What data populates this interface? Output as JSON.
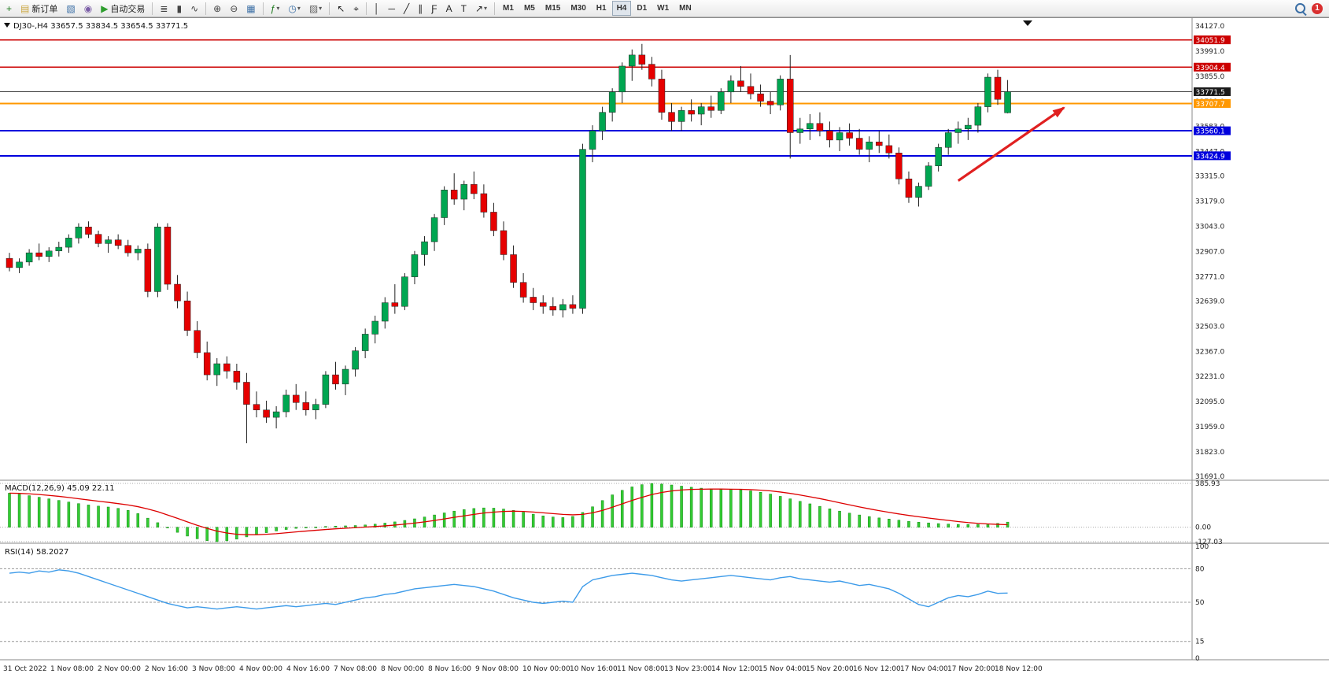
{
  "toolbar": {
    "items": [
      {
        "name": "new-chart-button",
        "glyph": "+",
        "glyph_color": "#1d7a1d"
      },
      {
        "name": "new-order-button",
        "glyph": "▤",
        "glyph_color": "#caa53d",
        "label": "新订单"
      },
      {
        "name": "profiles-button",
        "glyph": "▧",
        "glyph_color": "#3a6ea5"
      },
      {
        "name": "market-watch-button",
        "glyph": "◉",
        "glyph_color": "#7b5ea7"
      },
      {
        "name": "autotrading-button",
        "glyph": "▶",
        "glyph_color": "#2e9e2e",
        "label": "自动交易"
      },
      {
        "type": "sep"
      },
      {
        "name": "bar-chart-button",
        "glyph": "≣",
        "glyph_color": "#444"
      },
      {
        "name": "candlestick-chart-button",
        "glyph": "▮",
        "glyph_color": "#444"
      },
      {
        "name": "line-chart-button",
        "glyph": "∿",
        "glyph_color": "#444"
      },
      {
        "type": "sep"
      },
      {
        "name": "zoom-in-button",
        "glyph": "⊕",
        "glyph_color": "#444"
      },
      {
        "name": "zoom-out-button",
        "glyph": "⊖",
        "glyph_color": "#444"
      },
      {
        "name": "tile-windows-button",
        "glyph": "▦",
        "glyph_color": "#3a6ea5"
      },
      {
        "type": "sep"
      },
      {
        "name": "indicators-button",
        "glyph": "ƒ",
        "glyph_color": "#1d7a1d",
        "dropdown": true
      },
      {
        "name": "periods-button",
        "glyph": "◷",
        "glyph_color": "#3a6ea5",
        "dropdown": true
      },
      {
        "name": "templates-button",
        "glyph": "▨",
        "glyph_color": "#666",
        "dropdown": true
      },
      {
        "type": "sep"
      },
      {
        "name": "cursor-button",
        "glyph": "↖",
        "glyph_color": "#222"
      },
      {
        "name": "crosshair-button",
        "glyph": "⌖",
        "glyph_color": "#222"
      },
      {
        "type": "sep"
      },
      {
        "name": "vertical-line-button",
        "glyph": "│",
        "glyph_color": "#222"
      },
      {
        "name": "horizontal-line-button",
        "glyph": "─",
        "glyph_color": "#222"
      },
      {
        "name": "trendline-button",
        "glyph": "╱",
        "glyph_color": "#222"
      },
      {
        "name": "channel-button",
        "glyph": "∥",
        "glyph_color": "#222"
      },
      {
        "name": "fibonacci-button",
        "glyph": "Ƒ",
        "glyph_color": "#222"
      },
      {
        "name": "text-button",
        "glyph": "A",
        "glyph_color": "#222"
      },
      {
        "name": "label-button",
        "glyph": "T",
        "glyph_color": "#222"
      },
      {
        "name": "arrows-button",
        "glyph": "↗",
        "glyph_color": "#222",
        "dropdown": true
      },
      {
        "type": "sep"
      }
    ],
    "timeframes": [
      "M1",
      "M5",
      "M15",
      "M30",
      "H1",
      "H4",
      "D1",
      "W1",
      "MN"
    ],
    "active_timeframe": "H4",
    "notification_count": "1"
  },
  "chart": {
    "symbol_period": "DJ30-,H4",
    "ohlc_display": "33657.5 33834.5 33654.5 33771.5"
  },
  "colors": {
    "bull": "#00a651",
    "bear": "#e60000",
    "wick": "#222222",
    "macd_histogram": "#33cc33",
    "macd_histogram_stroke": "#118811",
    "macd_signal": "#dd0000",
    "rsi_line": "#3d9be9",
    "arrow": "#e02020",
    "panel_border": "#8a8a8a"
  },
  "chart_data": {
    "type": "candlestick",
    "title": "DJ30-,H4",
    "ohlc_display": "33657.5 33834.5 33654.5 33771.5",
    "y_range": [
      31691,
      34127
    ],
    "y_axis_labels": [
      "34127.0",
      "33991.0",
      "33855.0",
      "33719.0",
      "33583.0",
      "33447.0",
      "33315.0",
      "33179.0",
      "33043.0",
      "32907.0",
      "32771.0",
      "32639.0",
      "32503.0",
      "32367.0",
      "32231.0",
      "32095.0",
      "31959.0",
      "31823.0",
      "31691.0"
    ],
    "x_labels": [
      "31 Oct 2022",
      "1 Nov 08:00",
      "2 Nov 00:00",
      "2 Nov 16:00",
      "3 Nov 08:00",
      "4 Nov 00:00",
      "4 Nov 16:00",
      "7 Nov 08:00",
      "8 Nov 00:00",
      "8 Nov 16:00",
      "9 Nov 08:00",
      "10 Nov 00:00",
      "10 Nov 16:00",
      "11 Nov 08:00",
      "13 Nov 23:00",
      "14 Nov 12:00",
      "15 Nov 04:00",
      "15 Nov 20:00",
      "16 Nov 12:00",
      "17 Nov 04:00",
      "17 Nov 20:00",
      "18 Nov 12:00"
    ],
    "levels": [
      {
        "value": 34051.9,
        "label": "34051.9",
        "color": "#cc0000",
        "width": 1.4
      },
      {
        "value": 33904.4,
        "label": "33904.4",
        "color": "#cc0000",
        "width": 1.4
      },
      {
        "value": 33771.5,
        "label": "33771.5",
        "color": "#3a3a3a",
        "width": 1,
        "tag_bg": "#1a1a1a",
        "role": "current-price"
      },
      {
        "value": 33707.7,
        "label": "33707.7",
        "color": "#ff9800",
        "width": 2
      },
      {
        "value": 33560.1,
        "label": "33560.1",
        "color": "#0000dd",
        "width": 2
      },
      {
        "value": 33424.9,
        "label": "33424.9",
        "color": "#0000dd",
        "width": 2
      }
    ],
    "arrow": {
      "from_bar": 96,
      "from_price": 33290,
      "to_bar": 106.7,
      "to_price": 33685
    },
    "candles": [
      [
        32870,
        32900,
        32800,
        32820
      ],
      [
        32820,
        32870,
        32790,
        32850
      ],
      [
        32850,
        32920,
        32830,
        32900
      ],
      [
        32900,
        32950,
        32860,
        32880
      ],
      [
        32880,
        32930,
        32850,
        32910
      ],
      [
        32910,
        32960,
        32880,
        32930
      ],
      [
        32930,
        33000,
        32900,
        32980
      ],
      [
        32980,
        33060,
        32950,
        33040
      ],
      [
        33040,
        33070,
        32980,
        33000
      ],
      [
        33000,
        33020,
        32930,
        32950
      ],
      [
        32950,
        32990,
        32900,
        32970
      ],
      [
        32970,
        33000,
        32920,
        32940
      ],
      [
        32940,
        32970,
        32880,
        32900
      ],
      [
        32900,
        32940,
        32860,
        32920
      ],
      [
        32920,
        32950,
        32660,
        32690
      ],
      [
        32690,
        33060,
        32660,
        33040
      ],
      [
        33040,
        33060,
        32700,
        32730
      ],
      [
        32730,
        32780,
        32600,
        32640
      ],
      [
        32640,
        32690,
        32450,
        32480
      ],
      [
        32480,
        32530,
        32330,
        32360
      ],
      [
        32360,
        32420,
        32210,
        32240
      ],
      [
        32240,
        32330,
        32180,
        32300
      ],
      [
        32300,
        32340,
        32220,
        32260
      ],
      [
        32260,
        32300,
        32160,
        32200
      ],
      [
        32200,
        32250,
        31870,
        32080
      ],
      [
        32080,
        32150,
        32010,
        32050
      ],
      [
        32050,
        32100,
        31980,
        32010
      ],
      [
        32010,
        32070,
        31950,
        32040
      ],
      [
        32040,
        32160,
        32010,
        32130
      ],
      [
        32130,
        32190,
        32050,
        32090
      ],
      [
        32090,
        32150,
        32020,
        32050
      ],
      [
        32050,
        32110,
        32000,
        32080
      ],
      [
        32080,
        32260,
        32060,
        32240
      ],
      [
        32240,
        32310,
        32160,
        32190
      ],
      [
        32190,
        32290,
        32130,
        32270
      ],
      [
        32270,
        32390,
        32230,
        32370
      ],
      [
        32370,
        32490,
        32330,
        32460
      ],
      [
        32460,
        32560,
        32410,
        32530
      ],
      [
        32530,
        32660,
        32490,
        32630
      ],
      [
        32630,
        32730,
        32570,
        32610
      ],
      [
        32610,
        32790,
        32590,
        32770
      ],
      [
        32770,
        32910,
        32730,
        32890
      ],
      [
        32890,
        32990,
        32830,
        32960
      ],
      [
        32960,
        33110,
        32910,
        33090
      ],
      [
        33090,
        33260,
        33050,
        33240
      ],
      [
        33240,
        33330,
        33160,
        33190
      ],
      [
        33190,
        33290,
        33130,
        33270
      ],
      [
        33270,
        33340,
        33190,
        33220
      ],
      [
        33220,
        33270,
        33090,
        33120
      ],
      [
        33120,
        33170,
        32990,
        33020
      ],
      [
        33020,
        33070,
        32860,
        32890
      ],
      [
        32890,
        32940,
        32710,
        32740
      ],
      [
        32740,
        32790,
        32630,
        32660
      ],
      [
        32660,
        32710,
        32590,
        32630
      ],
      [
        32630,
        32670,
        32570,
        32610
      ],
      [
        32610,
        32660,
        32560,
        32590
      ],
      [
        32590,
        32650,
        32550,
        32620
      ],
      [
        32620,
        32670,
        32570,
        32600
      ],
      [
        32600,
        33490,
        32570,
        33460
      ],
      [
        33460,
        33590,
        33390,
        33560
      ],
      [
        33560,
        33690,
        33510,
        33660
      ],
      [
        33660,
        33790,
        33610,
        33770
      ],
      [
        33770,
        33930,
        33710,
        33910
      ],
      [
        33910,
        34000,
        33830,
        33970
      ],
      [
        33970,
        34030,
        33890,
        33920
      ],
      [
        33920,
        33960,
        33800,
        33840
      ],
      [
        33840,
        33890,
        33620,
        33660
      ],
      [
        33660,
        33710,
        33560,
        33610
      ],
      [
        33610,
        33690,
        33560,
        33670
      ],
      [
        33670,
        33730,
        33610,
        33650
      ],
      [
        33650,
        33710,
        33590,
        33690
      ],
      [
        33690,
        33750,
        33630,
        33670
      ],
      [
        33670,
        33790,
        33650,
        33770
      ],
      [
        33770,
        33860,
        33710,
        33830
      ],
      [
        33830,
        33910,
        33770,
        33800
      ],
      [
        33800,
        33870,
        33730,
        33760
      ],
      [
        33760,
        33810,
        33690,
        33720
      ],
      [
        33720,
        33770,
        33650,
        33700
      ],
      [
        33700,
        33860,
        33670,
        33840
      ],
      [
        33840,
        33970,
        33410,
        33550
      ],
      [
        33550,
        33630,
        33490,
        33570
      ],
      [
        33570,
        33650,
        33510,
        33600
      ],
      [
        33600,
        33660,
        33530,
        33560
      ],
      [
        33560,
        33610,
        33470,
        33510
      ],
      [
        33510,
        33580,
        33450,
        33550
      ],
      [
        33550,
        33600,
        33480,
        33520
      ],
      [
        33520,
        33570,
        33430,
        33460
      ],
      [
        33460,
        33530,
        33390,
        33500
      ],
      [
        33500,
        33560,
        33440,
        33480
      ],
      [
        33480,
        33540,
        33410,
        33440
      ],
      [
        33440,
        33470,
        33270,
        33300
      ],
      [
        33300,
        33340,
        33170,
        33200
      ],
      [
        33200,
        33280,
        33150,
        33260
      ],
      [
        33260,
        33390,
        33240,
        33370
      ],
      [
        33370,
        33490,
        33340,
        33470
      ],
      [
        33470,
        33570,
        33430,
        33550
      ],
      [
        33550,
        33610,
        33490,
        33570
      ],
      [
        33570,
        33630,
        33510,
        33590
      ],
      [
        33590,
        33710,
        33550,
        33690
      ],
      [
        33690,
        33870,
        33660,
        33850
      ],
      [
        33850,
        33890,
        33700,
        33730
      ],
      [
        33657.5,
        33834.5,
        33654.5,
        33771.5
      ]
    ],
    "indicators": [
      {
        "type": "bar",
        "name": "MACD(12,26,9)",
        "value_main": "45.09",
        "value_signal": "22.11",
        "y_axis_labels": [
          "385.93",
          "0.00",
          "-127.03"
        ],
        "y_range": [
          -127.03,
          385.93
        ],
        "histogram": [
          300,
          290,
          278,
          264,
          250,
          236,
          222,
          208,
          196,
          186,
          178,
          166,
          148,
          120,
          80,
          40,
          -5,
          -45,
          -78,
          -102,
          -118,
          -127,
          -120,
          -105,
          -85,
          -65,
          -48,
          -33,
          -20,
          -10,
          -3,
          2,
          7,
          10,
          12,
          15,
          20,
          27,
          36,
          47,
          60,
          74,
          90,
          108,
          126,
          142,
          155,
          165,
          170,
          168,
          160,
          148,
          132,
          115,
          100,
          90,
          85,
          95,
          130,
          180,
          235,
          285,
          325,
          355,
          375,
          385,
          380,
          372,
          362,
          352,
          344,
          339,
          336,
          333,
          328,
          320,
          308,
          292,
          272,
          250,
          228,
          206,
          184,
          162,
          142,
          124,
          108,
          94,
          82,
          72,
          62,
          52,
          44,
          38,
          32,
          28,
          25,
          24,
          25,
          28,
          34,
          45.09
        ],
        "signal": [
          300,
          298,
          294,
          288,
          280,
          272,
          262,
          251,
          240,
          229,
          219,
          208,
          196,
          181,
          161,
          137,
          108,
          78,
          47,
          17,
          -10,
          -34,
          -51,
          -62,
          -66,
          -66,
          -62,
          -57,
          -49,
          -41,
          -34,
          -27,
          -20,
          -14,
          -9,
          -4,
          1,
          6,
          12,
          19,
          27,
          37,
          47,
          59,
          73,
          87,
          100,
          113,
          125,
          133,
          139,
          141,
          139,
          134,
          127,
          120,
          113,
          109,
          113,
          127,
          148,
          176,
          206,
          236,
          263,
          288,
          306,
          319,
          328,
          333,
          335,
          336,
          336,
          335,
          334,
          331,
          326,
          320,
          310,
          298,
          284,
          268,
          252,
          234,
          215,
          197,
          179,
          162,
          146,
          131,
          117,
          104,
          92,
          81,
          70,
          60,
          50,
          41,
          34,
          29,
          25,
          22.11
        ]
      },
      {
        "type": "line",
        "name": "RSI(14)",
        "value_display": "58.2027",
        "y_axis_labels": [
          "100",
          "80",
          "50",
          "15",
          "0"
        ],
        "y_range": [
          0,
          100
        ],
        "level_lines": [
          80,
          50,
          15
        ],
        "values": [
          76,
          77,
          76,
          78,
          77,
          79,
          78,
          76,
          73,
          70,
          67,
          64,
          61,
          58,
          55,
          52,
          49,
          47,
          45,
          46,
          45,
          44,
          45,
          46,
          45,
          44,
          45,
          46,
          47,
          46,
          47,
          48,
          49,
          48,
          50,
          52,
          54,
          55,
          57,
          58,
          60,
          62,
          63,
          64,
          65,
          66,
          65,
          64,
          62,
          60,
          57,
          54,
          52,
          50,
          49,
          50,
          51,
          50,
          64,
          70,
          72,
          74,
          75,
          76,
          75,
          74,
          72,
          70,
          69,
          70,
          71,
          72,
          73,
          74,
          73,
          72,
          71,
          70,
          72,
          73,
          71,
          70,
          69,
          68,
          69,
          67,
          65,
          66,
          64,
          62,
          58,
          53,
          48,
          46,
          50,
          54,
          56,
          55,
          57,
          60,
          58,
          58.2
        ]
      }
    ]
  }
}
